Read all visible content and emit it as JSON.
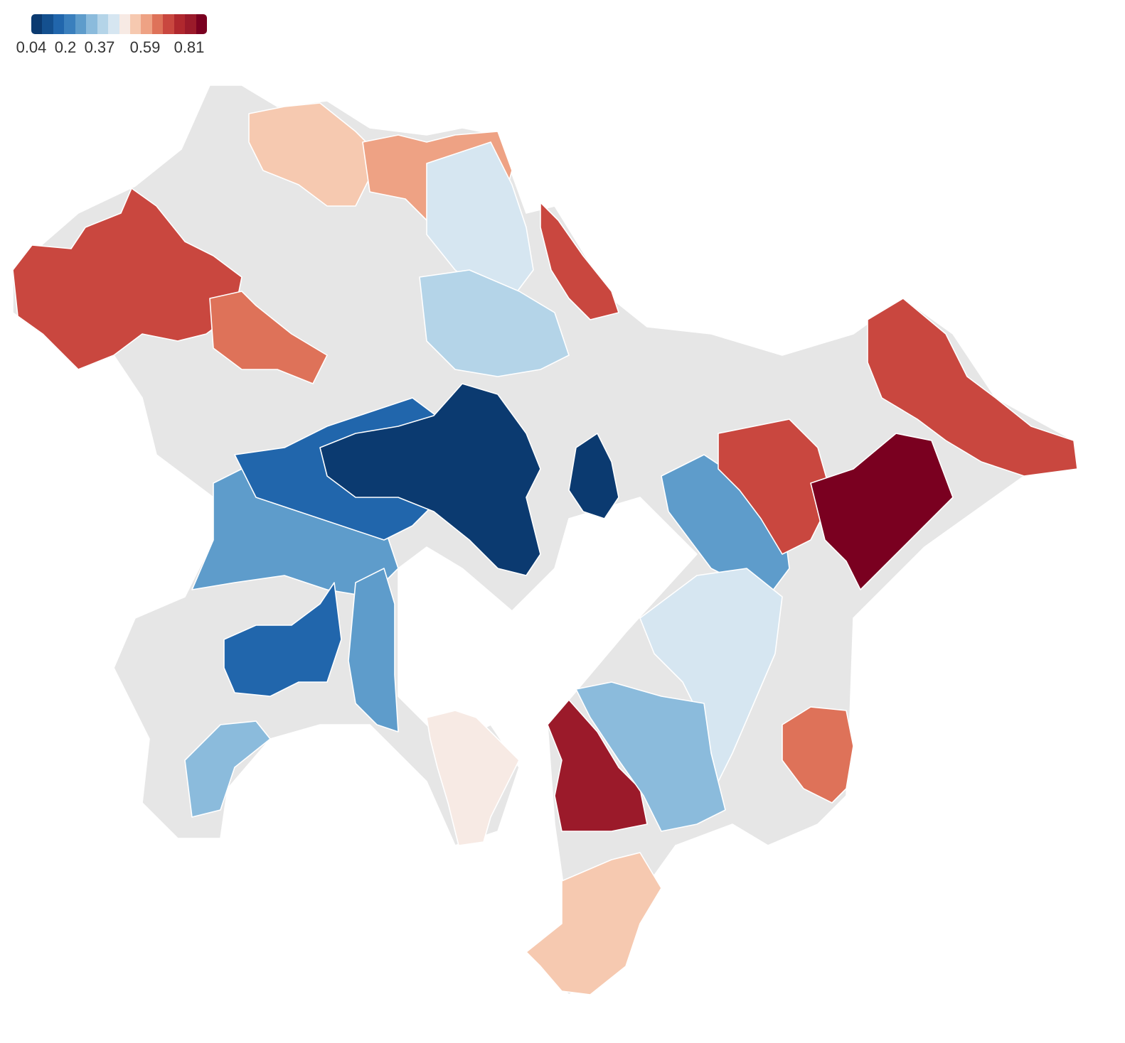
{
  "legend": {
    "ticks": [
      "0.04",
      "0.2",
      "0.37",
      "0.59",
      "0.81"
    ],
    "colors": [
      "#0b3a70",
      "#14508f",
      "#2166ac",
      "#3a7fbd",
      "#5e9ccb",
      "#8bbbdc",
      "#b4d4e8",
      "#d6e6f1",
      "#f7eae4",
      "#f6c9b0",
      "#eea284",
      "#de7259",
      "#c9473f",
      "#b0282e",
      "#9b1a2a",
      "#7a0020"
    ]
  },
  "map": {
    "ocean_color": "#ffffff",
    "nodata_color": "#e6e6e6",
    "regions": [
      {
        "id": "west-mountains",
        "value": 0.62
      },
      {
        "id": "northwest-hills",
        "value": 0.6
      },
      {
        "id": "north-central-a",
        "value": 0.52
      },
      {
        "id": "north-central-b",
        "value": 0.55
      },
      {
        "id": "north-east-strip",
        "value": 0.64
      },
      {
        "id": "north-pale",
        "value": 0.42
      },
      {
        "id": "central-pale",
        "value": 0.33
      },
      {
        "id": "west-light-blue",
        "value": 0.27
      },
      {
        "id": "central-blue",
        "value": 0.14
      },
      {
        "id": "urban-core-dark",
        "value": 0.05
      },
      {
        "id": "bay-east-dark",
        "value": 0.06
      },
      {
        "id": "south-west-blue",
        "value": 0.16
      },
      {
        "id": "south-west-light",
        "value": 0.29
      },
      {
        "id": "miura-peninsula",
        "value": 0.44
      },
      {
        "id": "peninsula-west-blue",
        "value": 0.24
      },
      {
        "id": "east-blue",
        "value": 0.26
      },
      {
        "id": "east-red",
        "value": 0.63
      },
      {
        "id": "far-east-dark",
        "value": 0.8
      },
      {
        "id": "east-coast-red",
        "value": 0.66
      },
      {
        "id": "south-pale",
        "value": 0.39
      },
      {
        "id": "boso-south",
        "value": 0.5
      },
      {
        "id": "boso-west-dark",
        "value": 0.72
      },
      {
        "id": "boso-center-light",
        "value": 0.3
      },
      {
        "id": "boso-east-red",
        "value": 0.6
      }
    ]
  }
}
